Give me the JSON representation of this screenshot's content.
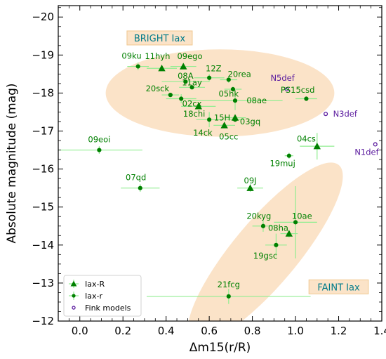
{
  "chart_data": {
    "type": "scatter",
    "xlabel": "Δm15(r/R)",
    "ylabel": "Absolute magnitude (mag)",
    "xlim": [
      -0.1,
      1.4
    ],
    "ylim": [
      -12,
      -20.3
    ],
    "y_inverted": true,
    "x_ticks": [
      0.0,
      0.2,
      0.4,
      0.6,
      0.8,
      1.0,
      1.2,
      1.4
    ],
    "x_tick_labels": [
      "0.0",
      "0.2",
      "0.4",
      "0.6",
      "0.8",
      "1.0",
      "1.2",
      "1.4"
    ],
    "y_ticks": [
      -20,
      -19,
      -18,
      -17,
      -16,
      -15,
      -14,
      -13,
      -12
    ],
    "y_tick_labels": [
      "−20",
      "−19",
      "−18",
      "−17",
      "−16",
      "−15",
      "−14",
      "−13",
      "−12"
    ],
    "colors": {
      "data": "#008000",
      "errorbar": "#90ee90",
      "model": "#5a1a9e",
      "region_fill": "#fbe3c8",
      "region_label": "#007b8a"
    },
    "regions": [
      {
        "label": "BRIGHT Iax",
        "cx": 0.65,
        "cy": -18.0,
        "rx": 0.53,
        "ry": 1.15,
        "label_x": 0.37,
        "label_y": -19.45
      },
      {
        "label": "FAINT Iax",
        "cx": 0.86,
        "cy": -13.8,
        "rx": 0.53,
        "ry": 0.85,
        "label_x": 1.2,
        "label_y": -12.9,
        "angle": -50
      }
    ],
    "series": [
      {
        "name": "Iax-R",
        "marker": "triangle",
        "points": [
          {
            "label": "11hyh",
            "x": 0.38,
            "y": -18.65,
            "xerr": 0.07,
            "yerr": 0.05,
            "lx": 0.36,
            "ly": -18.97
          },
          {
            "label": "09ego",
            "x": 0.48,
            "y": -18.7,
            "xerr": 0.06,
            "yerr": 0.05,
            "lx": 0.51,
            "ly": -18.97
          },
          {
            "label": "18chi",
            "x": 0.55,
            "y": -17.65,
            "xerr": 0.08,
            "yerr": 0.06,
            "lx": 0.53,
            "ly": -17.45
          },
          {
            "label": "15H",
            "x": 0.72,
            "y": -17.35,
            "xerr": 0.05,
            "yerr": 0.05,
            "lx": 0.66,
            "ly": -17.35
          },
          {
            "label": "05cc",
            "x": 0.67,
            "y": -17.15,
            "xerr": 0.05,
            "yerr": 0.05,
            "lx": 0.69,
            "ly": -16.85
          },
          {
            "label": "09J",
            "x": 0.79,
            "y": -15.5,
            "xerr": 0.06,
            "yerr": 0.1,
            "lx": 0.79,
            "ly": -15.7
          },
          {
            "label": "08ha",
            "x": 0.97,
            "y": -14.3,
            "xerr": 0.04,
            "yerr": 0.1,
            "lx": 0.92,
            "ly": -14.45
          },
          {
            "label": "04cs",
            "x": 1.1,
            "y": -16.6,
            "xerr": 0.08,
            "yerr": 0.35,
            "lx": 1.05,
            "ly": -16.8
          }
        ]
      },
      {
        "name": "Iax-r",
        "marker": "circle",
        "points": [
          {
            "label": "09ku",
            "x": 0.27,
            "y": -18.7,
            "xerr": 0.05,
            "yerr": 0.1,
            "lx": 0.24,
            "ly": -18.98
          },
          {
            "label": "12Z",
            "x": 0.6,
            "y": -18.4,
            "xerr": 0.07,
            "yerr": 0.1,
            "lx": 0.62,
            "ly": -18.65
          },
          {
            "label": "20rea",
            "x": 0.69,
            "y": -18.35,
            "xerr": 0.04,
            "yerr": 0.08,
            "lx": 0.74,
            "ly": -18.5
          },
          {
            "label": "08A",
            "x": 0.49,
            "y": -18.3,
            "xerr": 0.11,
            "yerr": 0.06,
            "lx": 0.49,
            "ly": -18.45
          },
          {
            "label": "11ay",
            "x": 0.52,
            "y": -18.15,
            "xerr": 0.06,
            "yerr": 0.05,
            "lx": 0.52,
            "ly": -18.28
          },
          {
            "label": "20sck",
            "x": 0.42,
            "y": -17.95,
            "xerr": 0.04,
            "yerr": 0.05,
            "lx": 0.36,
            "ly": -18.12
          },
          {
            "label": "05hk",
            "x": 0.71,
            "y": -18.1,
            "xerr": 0.04,
            "yerr": 0.07,
            "lx": 0.69,
            "ly": -17.98
          },
          {
            "label": "02cx",
            "x": 0.47,
            "y": -17.85,
            "xerr": 0.07,
            "yerr": 0.12,
            "lx": 0.52,
            "ly": -17.72
          },
          {
            "label": "08ae",
            "x": 0.72,
            "y": -17.8,
            "xerr": 0.22,
            "yerr": 0.25,
            "lx": 0.82,
            "ly": -17.8
          },
          {
            "label": "14ck",
            "x": 0.6,
            "y": -17.3,
            "xerr": 0.06,
            "yerr": 0.2,
            "lx": 0.57,
            "ly": -16.95
          },
          {
            "label": "03gq",
            "x": 0.72,
            "y": -17.3,
            "xerr": 0.04,
            "yerr": 0.05,
            "lx": 0.79,
            "ly": -17.25
          },
          {
            "label": "PS15csd",
            "x": 1.05,
            "y": -17.85,
            "xerr": 0.05,
            "yerr": 0.05,
            "lx": 1.01,
            "ly": -18.08
          },
          {
            "label": "19muj",
            "x": 0.97,
            "y": -16.35,
            "xerr": 0.02,
            "yerr": 0.08,
            "lx": 0.94,
            "ly": -16.15
          },
          {
            "label": "09eoi",
            "x": 0.09,
            "y": -16.5,
            "xerr": 0.2,
            "yerr": 0.1,
            "lx": 0.09,
            "ly": -16.78
          },
          {
            "label": "07qd",
            "x": 0.28,
            "y": -15.5,
            "xerr": 0.09,
            "yerr": 0.1,
            "lx": 0.26,
            "ly": -15.78
          },
          {
            "label": "20kyg",
            "x": 0.85,
            "y": -14.5,
            "xerr": 0.05,
            "yerr": 0.15,
            "lx": 0.83,
            "ly": -14.76
          },
          {
            "label": "10ae",
            "x": 1.0,
            "y": -14.6,
            "xerr": 0.1,
            "yerr": 0.95,
            "lx": 1.03,
            "ly": -14.76
          },
          {
            "label": "19gsc",
            "x": 0.91,
            "y": -14.0,
            "xerr": 0.05,
            "yerr": 0.3,
            "lx": 0.86,
            "ly": -13.72
          },
          {
            "label": "21fcg",
            "x": 0.69,
            "y": -12.65,
            "xerr": 0.38,
            "yerr": 0.2,
            "lx": 0.69,
            "ly": -12.96
          }
        ]
      },
      {
        "name": "Fink models",
        "marker": "open-circle",
        "points": [
          {
            "label": "N5def",
            "x": 0.96,
            "y": -18.1,
            "lx": 0.94,
            "ly": -18.4
          },
          {
            "label": "N3def",
            "x": 1.14,
            "y": -17.45,
            "lx": 1.23,
            "ly": -17.45
          },
          {
            "label": "N1def",
            "x": 1.37,
            "y": -16.65,
            "lx": 1.33,
            "ly": -16.45
          }
        ]
      }
    ],
    "legend": {
      "placement": "lower-left",
      "entries": [
        {
          "label": "Iax-R",
          "marker": "triangle"
        },
        {
          "label": "Iax-r",
          "marker": "circle"
        },
        {
          "label": "Fink models",
          "marker": "open-circle"
        }
      ]
    }
  }
}
